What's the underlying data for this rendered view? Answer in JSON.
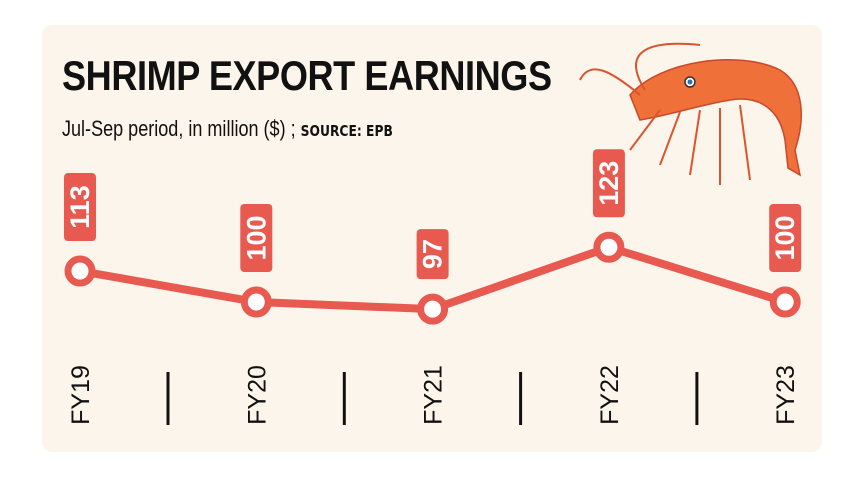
{
  "chart_data": {
    "type": "line",
    "title": "SHRIMP EXPORT EARNINGS",
    "subtitle": "Jul-Sep period, in million ($) ;",
    "source": "SOURCE: EPB",
    "categories": [
      "FY19",
      "FY20",
      "FY21",
      "FY22",
      "FY23"
    ],
    "values": [
      113,
      100,
      97,
      123,
      100
    ],
    "data_labels": [
      "113",
      "100",
      "97",
      "123",
      "100"
    ],
    "grid": false,
    "colors": {
      "line": "#e85a50",
      "background": "#fcf5ec",
      "shrimp": "#f0703a"
    }
  },
  "illustration": "shrimp-icon"
}
